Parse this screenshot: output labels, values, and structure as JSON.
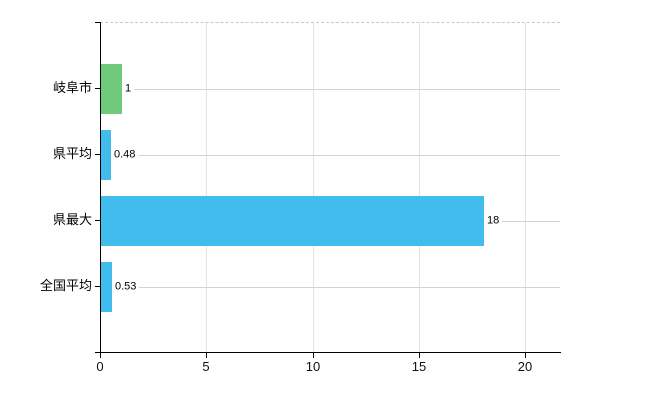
{
  "chart_data": {
    "type": "bar",
    "orientation": "horizontal",
    "title": "",
    "xlabel": "",
    "ylabel": "",
    "categories": [
      "岐阜市",
      "県平均",
      "県最大",
      "全国平均"
    ],
    "values": [
      1,
      0.48,
      18,
      0.53
    ],
    "value_labels": [
      "1",
      "0.48",
      "18",
      "0.53"
    ],
    "bar_colors": [
      "#6fca7d",
      "#42bcec",
      "#42bcec",
      "#42bcec"
    ],
    "x_ticks": [
      0,
      5,
      10,
      15,
      20
    ],
    "x_tick_labels": [
      "0",
      "5",
      "10",
      "15",
      "20"
    ],
    "xlim": [
      0,
      20
    ],
    "grid": "vertical gridlines at x ticks; horizontal guide line at each bar center; dashed top border",
    "legend_position": "none"
  },
  "colors": {
    "background": "#ffffff",
    "axis": "#000000",
    "vertical_gridline": "#e2e2e2",
    "horizontal_guideline": "#d2d2d2",
    "plot_top_border": "#c9c9c9",
    "text": "#000000",
    "bar_green": "#6fca7d",
    "bar_blue": "#42bcec"
  }
}
